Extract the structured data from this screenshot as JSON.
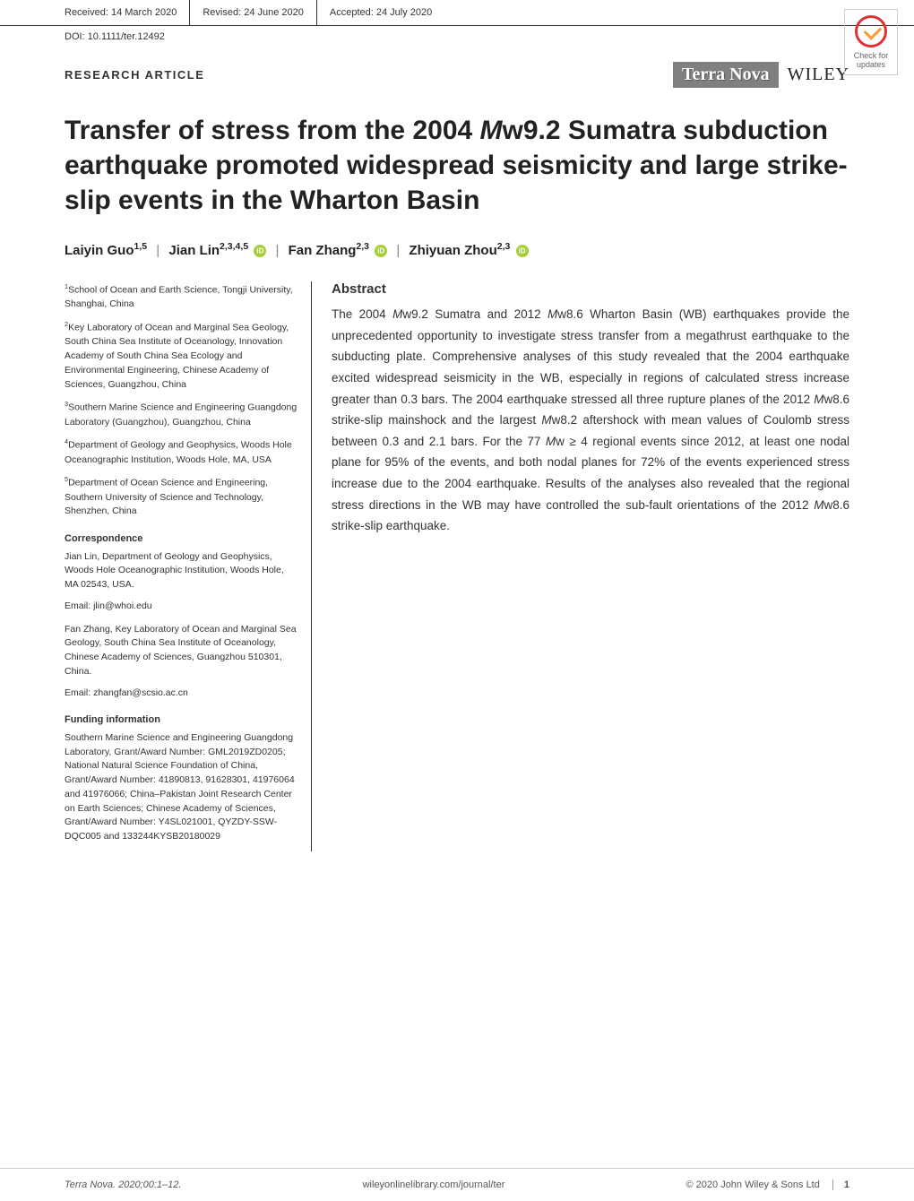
{
  "header": {
    "received": "Received: 14 March 2020",
    "revised": "Revised: 24 June 2020",
    "accepted": "Accepted: 24 July 2020"
  },
  "doi": "DOI: 10.1111/ter.12492",
  "article_type": "RESEARCH ARTICLE",
  "journal_name": "Terra Nova",
  "publisher": "WILEY",
  "check_updates": "Check for updates",
  "title_parts": {
    "pre": "Transfer of stress from the 2004 ",
    "mw": "M",
    "post_mw": "w9.2 Sumatra subduction earthquake promoted widespread seismicity and large strike-slip events in the Wharton Basin"
  },
  "authors": [
    {
      "name": "Laiyin Guo",
      "sup": "1,5",
      "orcid": false
    },
    {
      "name": "Jian Lin",
      "sup": "2,3,4,5",
      "orcid": true
    },
    {
      "name": "Fan Zhang",
      "sup": "2,3",
      "orcid": true
    },
    {
      "name": "Zhiyuan Zhou",
      "sup": "2,3",
      "orcid": true
    }
  ],
  "affiliations": [
    {
      "num": "1",
      "text": "School of Ocean and Earth Science, Tongji University, Shanghai, China"
    },
    {
      "num": "2",
      "text": "Key Laboratory of Ocean and Marginal Sea Geology, South China Sea Institute of Oceanology, Innovation Academy of South China Sea Ecology and Environmental Engineering, Chinese Academy of Sciences, Guangzhou, China"
    },
    {
      "num": "3",
      "text": "Southern Marine Science and Engineering Guangdong Laboratory (Guangzhou), Guangzhou, China"
    },
    {
      "num": "4",
      "text": "Department of Geology and Geophysics, Woods Hole Oceanographic Institution, Woods Hole, MA, USA"
    },
    {
      "num": "5",
      "text": "Department of Ocean Science and Engineering, Southern University of Science and Technology, Shenzhen, China"
    }
  ],
  "correspondence_heading": "Correspondence",
  "correspondence": [
    "Jian Lin, Department of Geology and Geophysics, Woods Hole Oceanographic Institution, Woods Hole, MA 02543, USA.",
    "Email: jlin@whoi.edu",
    "Fan Zhang, Key Laboratory of Ocean and Marginal Sea Geology, South China Sea Institute of Oceanology, Chinese Academy of Sciences, Guangzhou 510301, China.",
    "Email: zhangfan@scsio.ac.cn"
  ],
  "funding_heading": "Funding information",
  "funding": "Southern Marine Science and Engineering Guangdong Laboratory, Grant/Award Number: GML2019ZD0205; National Natural Science Foundation of China, Grant/Award Number: 41890813, 91628301, 41976064 and 41976066; China–Pakistan Joint Research Center on Earth Sciences; Chinese Academy of Sciences, Grant/Award Number: Y4SL021001, QYZDY-SSW-DQC005 and 133244KYSB20180029",
  "abstract_heading": "Abstract",
  "abstract": "The 2004 Mw9.2 Sumatra and 2012 Mw8.6 Wharton Basin (WB) earthquakes provide the unprecedented opportunity to investigate stress transfer from a megathrust earthquake to the subducting plate. Comprehensive analyses of this study revealed that the 2004 earthquake excited widespread seismicity in the WB, especially in regions of calculated stress increase greater than 0.3 bars. The 2004 earthquake stressed all three rupture planes of the 2012 Mw8.6 strike-slip mainshock and the largest Mw8.2 aftershock with mean values of Coulomb stress between 0.3 and 2.1 bars. For the 77 Mw ≥ 4 regional events since 2012, at least one nodal plane for 95% of the events, and both nodal planes for 72% of the events experienced stress increase due to the 2004 earthquake. Results of the analyses also revealed that the regional stress directions in the WB may have controlled the sub-fault orientations of the 2012 Mw8.6 strike-slip earthquake.",
  "footer": {
    "citation": "Terra Nova. 2020;00:1–12.",
    "url": "wileyonlinelibrary.com/journal/ter",
    "copyright": "© 2020 John Wiley & Sons Ltd",
    "page": "1"
  }
}
